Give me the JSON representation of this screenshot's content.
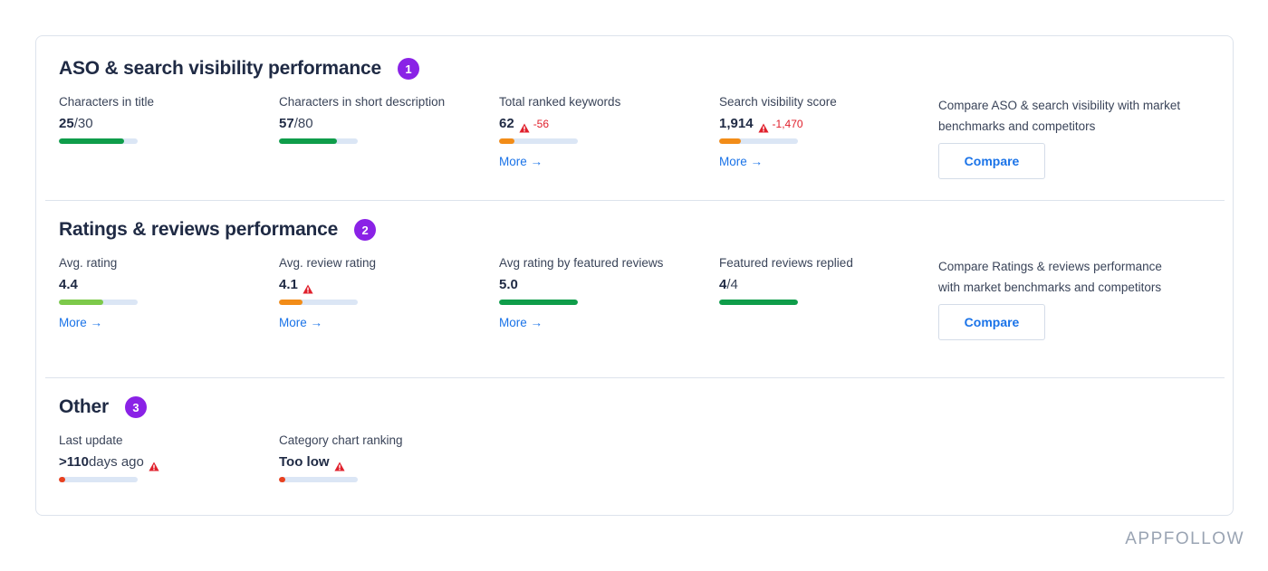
{
  "colors": {
    "green": "#0f9d4a",
    "light_green": "#7cc94a",
    "orange": "#f28c18",
    "red": "#e8411f",
    "track": "#dbe6f5",
    "warning": "#e0202c",
    "link": "#1a73e8",
    "badge": "#8a22e6"
  },
  "sections": [
    {
      "title": "ASO & search visibility performance",
      "badge": "1",
      "metrics": [
        {
          "label": "Characters in title",
          "value": "25",
          "suffix": "/30",
          "fill": 0.83,
          "color": "#0f9d4a",
          "warn": false,
          "delta": "",
          "more": ""
        },
        {
          "label": "Characters in short description",
          "value": "57",
          "suffix": "/80",
          "fill": 0.74,
          "color": "#0f9d4a",
          "warn": false,
          "delta": "",
          "more": ""
        },
        {
          "label": "Total ranked keywords",
          "value": "62",
          "suffix": "",
          "fill": 0.2,
          "color": "#f28c18",
          "warn": true,
          "delta": "-56",
          "more": "More →"
        },
        {
          "label": "Search visibility score",
          "value": "1,914",
          "suffix": "",
          "fill": 0.28,
          "color": "#f28c18",
          "warn": true,
          "delta": "-1,470",
          "more": "More →"
        }
      ],
      "compare_text": "Compare ASO & search visibility with market benchmarks and competitors",
      "compare_button": "Compare"
    },
    {
      "title": "Ratings & reviews performance",
      "badge": "2",
      "metrics": [
        {
          "label": "Avg. rating",
          "value": "4.4",
          "suffix": "",
          "fill": 0.56,
          "color": "#7cc94a",
          "warn": false,
          "delta": "",
          "more": "More →"
        },
        {
          "label": "Avg. review rating",
          "value": "4.1",
          "suffix": "",
          "fill": 0.3,
          "color": "#f28c18",
          "warn": true,
          "delta": "",
          "more": "More →"
        },
        {
          "label": "Avg rating by featured reviews",
          "value": "5.0",
          "suffix": "",
          "fill": 1.0,
          "color": "#0f9d4a",
          "warn": false,
          "delta": "",
          "more": "More →"
        },
        {
          "label": "Featured reviews replied",
          "value": "4",
          "suffix": "/4",
          "fill": 1.0,
          "color": "#0f9d4a",
          "warn": false,
          "delta": "",
          "more": ""
        }
      ],
      "compare_text": "Compare Ratings & reviews performance with market benchmarks and competitors",
      "compare_button": "Compare"
    },
    {
      "title": "Other",
      "badge": "3",
      "metrics": [
        {
          "label": "Last update",
          "value": ">110",
          "suffix": " days ago",
          "fill": 0.08,
          "color": "#e8411f",
          "warn": true,
          "delta": "",
          "more": ""
        },
        {
          "label": "Category chart ranking",
          "value": "Too low",
          "suffix": "",
          "fill": 0.08,
          "color": "#e8411f",
          "warn": true,
          "delta": "",
          "more": ""
        }
      ]
    }
  ],
  "brand": "APPFOLLOW"
}
